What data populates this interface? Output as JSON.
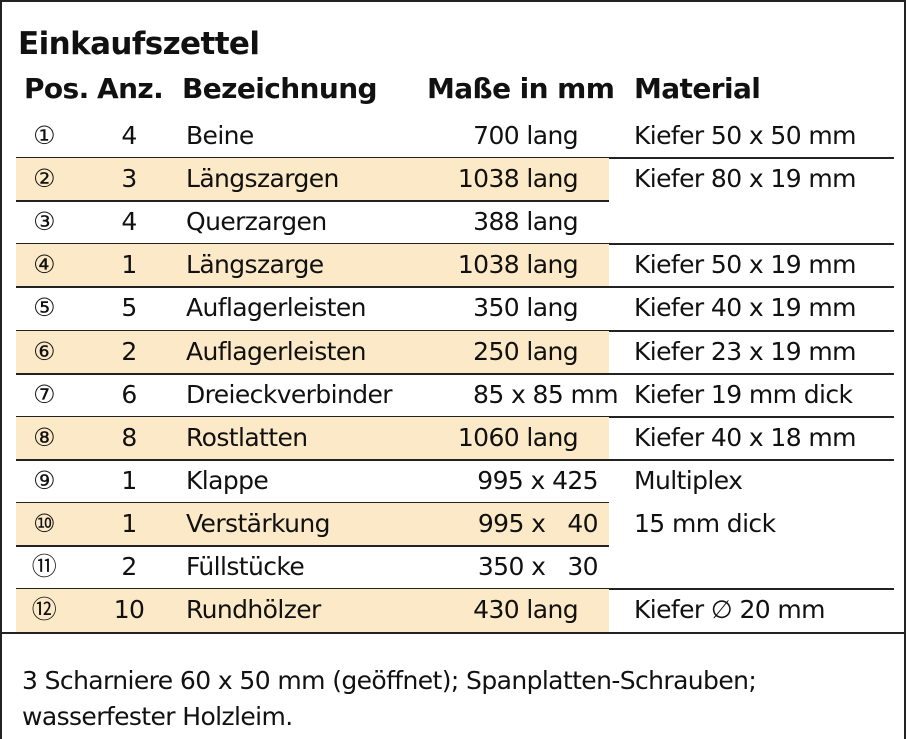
{
  "header": {
    "title": "Einkaufszettel"
  },
  "table": {
    "columns": [
      "Pos.",
      "Anz.",
      "Bezeichnung",
      "Maße in mm",
      "Material"
    ],
    "rows": [
      {
        "pos": "①",
        "qty": "4",
        "name": "Beine",
        "size": "700 lang",
        "material": "Kiefer 50 x 50 mm"
      },
      {
        "pos": "②",
        "qty": "3",
        "name": "Längszargen",
        "size": "1038 lang",
        "material": "Kiefer 80 x 19 mm"
      },
      {
        "pos": "③",
        "qty": "4",
        "name": "Querzargen",
        "size": "388 lang"
      },
      {
        "pos": "④",
        "qty": "1",
        "name": "Längszarge",
        "size": "1038 lang",
        "material": "Kiefer 50 x 19 mm"
      },
      {
        "pos": "⑤",
        "qty": "5",
        "name": "Auflagerleisten",
        "size": "350 lang",
        "material": "Kiefer 40 x 19 mm"
      },
      {
        "pos": "⑥",
        "qty": "2",
        "name": "Auflagerleisten",
        "size": "250 lang",
        "material": "Kiefer 23 x 19 mm"
      },
      {
        "pos": "⑦",
        "qty": "6",
        "name": "Dreieckverbinder",
        "size": "85 x 85 mm",
        "material": "Kiefer 19 mm dick"
      },
      {
        "pos": "⑧",
        "qty": "8",
        "name": "Rostlatten",
        "size": "1060 lang",
        "material": "Kiefer 40 x 18 mm"
      },
      {
        "pos": "⑨",
        "qty": "1",
        "name": "Klappe",
        "size": "995 x 425",
        "material": "Multiplex"
      },
      {
        "pos": "⑩",
        "qty": "1",
        "name": "Verstärkung",
        "size": "995 x   40",
        "material": "15 mm dick"
      },
      {
        "pos": "⑪",
        "qty": "2",
        "name": "Füllstücke",
        "size": "350 x   30"
      },
      {
        "pos": "⑫",
        "qty": "10",
        "name": "Rundhölzer",
        "size": "430 lang",
        "material": "Kiefer ∅ 20 mm"
      }
    ]
  },
  "footer": {
    "lines": [
      "3 Scharniere 60 x 50 mm (geöffnet); Spanplatten-Schrauben;",
      "wasserfester Holzleim."
    ]
  }
}
